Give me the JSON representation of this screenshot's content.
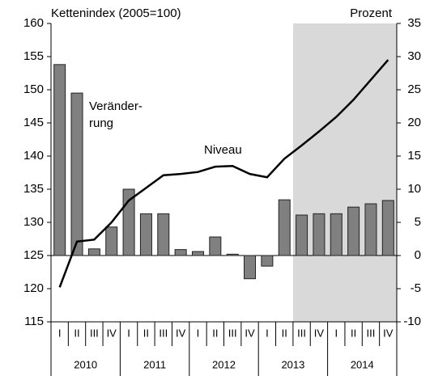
{
  "chart_data": {
    "type": "bar_line",
    "annotations": {
      "left_axis": "Kettenindex (2005=100)",
      "right_axis": "Prozent",
      "bar_label": [
        "Veränder-",
        "rung"
      ],
      "line_label": "Niveau"
    },
    "categories": [
      "I",
      "II",
      "III",
      "IV",
      "I",
      "II",
      "III",
      "IV",
      "I",
      "II",
      "III",
      "IV",
      "I",
      "II",
      "III",
      "IV",
      "I",
      "II",
      "III",
      "IV"
    ],
    "years": [
      "2010",
      "2011",
      "2012",
      "2013",
      "2014"
    ],
    "forecast_start_index": 14,
    "series": [
      {
        "name": "Veränderung",
        "color": "#808080",
        "axis": "y2",
        "values": [
          28.8,
          24.5,
          1.0,
          4.3,
          10.0,
          6.3,
          6.3,
          0.9,
          0.6,
          2.8,
          0.2,
          -3.5,
          -1.6,
          8.4,
          6.1,
          6.3,
          6.3,
          7.3,
          7.8,
          8.3
        ]
      },
      {
        "name": "Niveau",
        "color": "#000000",
        "axis": "y",
        "values": [
          120.2,
          127.1,
          127.4,
          130.0,
          133.3,
          135.2,
          137.1,
          137.3,
          137.6,
          138.4,
          138.5,
          137.3,
          136.8,
          139.6,
          141.6,
          143.7,
          145.9,
          148.5,
          151.5,
          154.5
        ]
      }
    ],
    "ylim": [
      115,
      160
    ],
    "yticks": [
      115,
      120,
      125,
      130,
      135,
      140,
      145,
      150,
      155,
      160
    ],
    "y2lim": [
      -10,
      35
    ],
    "y2ticks": [
      -10,
      -5,
      0,
      5,
      10,
      15,
      20,
      25,
      30,
      35
    ]
  }
}
